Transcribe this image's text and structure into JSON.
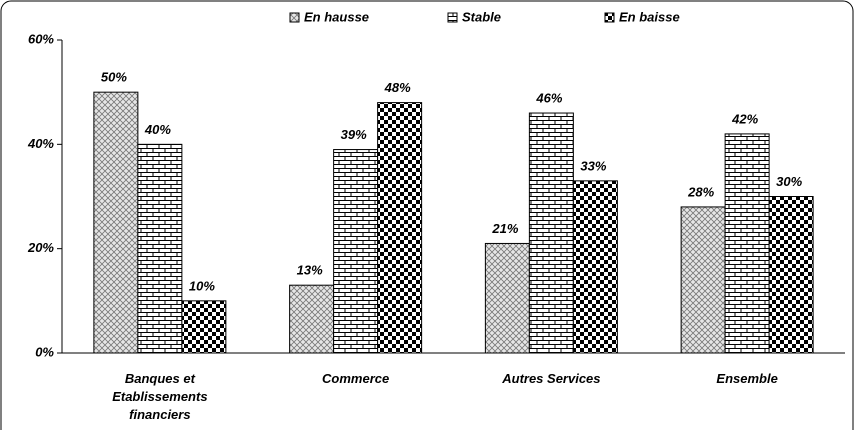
{
  "chart_data": {
    "type": "bar",
    "categories": [
      "Banques et Etablissements financiers",
      "Commerce",
      "Autres Services",
      "Ensemble"
    ],
    "series": [
      {
        "name": "En hausse",
        "color": "#000000",
        "pattern": "crosshatch",
        "values": [
          50,
          13,
          21,
          28
        ]
      },
      {
        "name": "Stable",
        "color": "#000000",
        "pattern": "brick",
        "values": [
          40,
          39,
          46,
          42
        ]
      },
      {
        "name": "En baisse",
        "color": "#000000",
        "pattern": "checker",
        "values": [
          10,
          48,
          33,
          30
        ]
      }
    ],
    "value_labels": [
      [
        "50%",
        "13%",
        "21%",
        "28%"
      ],
      [
        "40%",
        "39%",
        "46%",
        "42%"
      ],
      [
        "10%",
        "48%",
        "33%",
        "30%"
      ]
    ],
    "ylim": [
      0,
      60
    ],
    "yticks": [
      {
        "value": 0,
        "label": "0%"
      },
      {
        "value": 20,
        "label": "20%"
      },
      {
        "value": 40,
        "label": "40%"
      },
      {
        "value": 60,
        "label": "60%"
      }
    ],
    "grid": false,
    "legend": "top"
  }
}
